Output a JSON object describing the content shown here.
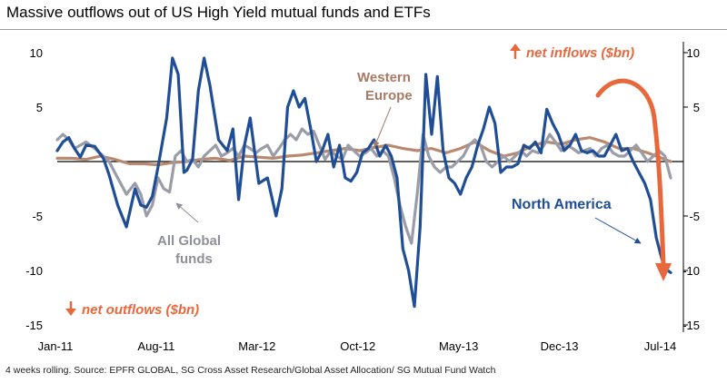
{
  "title": "Massive outflows out of US High Yield mutual funds and ETFs",
  "source": "4 weeks rolling. Source: EPFR GLOBAL, SG Cross Asset Research/Global Asset Allocation/ SG Mutual Fund Watch",
  "colors": {
    "north_america": "#1f4e96",
    "all_global": "#9a9ca8",
    "western_europe": "#b8896e",
    "annotation": "#e8683c",
    "label_gray": "#8e8f99",
    "label_brown": "#a67a66"
  },
  "annotations": {
    "net_inflows": "net inflows ($bn)",
    "net_outflows": "net outflows ($bn)"
  },
  "chart_data": {
    "type": "line",
    "ylim": [
      -15,
      10
    ],
    "y_ticks": [
      10,
      5,
      -5,
      -10,
      -15
    ],
    "x_tick_labels": [
      "Jan-11",
      "Aug-11",
      "Mar-12",
      "Oct-12",
      "May-13",
      "Dec-13",
      "Jul-14"
    ],
    "x_range_months": [
      "2011-01",
      "2014-07"
    ],
    "series": [
      {
        "name": "North America",
        "label_lines": [
          "North America"
        ],
        "x_month": [
          0,
          0.4,
          0.8,
          1.2,
          1.6,
          2.0,
          2.6,
          3.2,
          3.6,
          4.2,
          4.8,
          5.4,
          5.8,
          6.2,
          6.6,
          7.0,
          7.2,
          7.6,
          8.0,
          8.4,
          8.8,
          9.0,
          9.4,
          9.8,
          10.2,
          10.6,
          11.2,
          11.8,
          12.2,
          12.6,
          13.0,
          13.4,
          14.0,
          14.6,
          15.2,
          15.6,
          16.0,
          16.4,
          16.8,
          17.2,
          17.6,
          18.0,
          18.4,
          18.8,
          19.2,
          19.6,
          20.0,
          20.4,
          20.8,
          21.2,
          21.6,
          22.0,
          22.4,
          22.8,
          23.2,
          23.6,
          24.0,
          24.4,
          24.8,
          25.2,
          25.6,
          26.0,
          26.4,
          26.8,
          27.2,
          27.6,
          28.0,
          28.4,
          28.8,
          29.2,
          29.6,
          30.0,
          30.4,
          30.8,
          31.2,
          31.6,
          32.0,
          32.4,
          32.8,
          33.2,
          33.6,
          34.0,
          34.4,
          34.8,
          35.2,
          35.6,
          36.0,
          36.4,
          36.8,
          37.2,
          37.6,
          38.0,
          38.4,
          38.8,
          39.2,
          39.6,
          40.0,
          40.4,
          40.8,
          41.2,
          41.6,
          42.0,
          42.4,
          42.6
        ],
        "values": [
          1.0,
          1.8,
          2.2,
          1.2,
          0.4,
          1.5,
          1.4,
          0.3,
          -1.2,
          -4.0,
          -6.0,
          -2.5,
          -4.0,
          -4.2,
          -3.2,
          -0.5,
          1.0,
          4.0,
          9.5,
          8.0,
          -1.0,
          -0.8,
          0.2,
          6.5,
          9.5,
          7.0,
          2.0,
          1.0,
          3.0,
          -3.5,
          1.5,
          4.0,
          -2.0,
          -1.5,
          -5.0,
          -2.5,
          5.0,
          6.5,
          5.0,
          5.8,
          3.0,
          0.0,
          1.0,
          2.5,
          -0.5,
          1.5,
          -1.5,
          -1.8,
          -1.0,
          0.8,
          1.2,
          2.0,
          0.5,
          1.5,
          0.5,
          -1.5,
          -8.0,
          -10.0,
          -13.3,
          -6.0,
          8.0,
          2.5,
          7.8,
          1.0,
          -1.5,
          -2.0,
          -3.0,
          -1.5,
          -0.5,
          1.5,
          3.0,
          5.0,
          3.5,
          -1.0,
          -0.5,
          -0.5,
          -0.2,
          1.5,
          1.2,
          1.8,
          0.8,
          4.8,
          3.5,
          2.5,
          1.0,
          1.5,
          2.5,
          1.0,
          0.8,
          1.0,
          0.5,
          0.5,
          1.5,
          2.5,
          1.0,
          1.2,
          0.0,
          -1.0,
          -2.0,
          -3.5,
          -7.0,
          -9.0,
          -10.0,
          -10.2
        ]
      },
      {
        "name": "All Global funds",
        "label_lines": [
          "All Global",
          "funds"
        ],
        "x_month": [
          0,
          0.4,
          0.8,
          1.2,
          1.6,
          2.0,
          2.6,
          3.2,
          3.6,
          4.2,
          4.8,
          5.4,
          5.8,
          6.2,
          6.6,
          7.0,
          7.4,
          7.8,
          8.2,
          8.6,
          9.0,
          9.4,
          9.8,
          10.2,
          10.6,
          11.0,
          11.4,
          11.8,
          12.2,
          12.6,
          13.0,
          13.4,
          13.8,
          14.2,
          14.6,
          15.0,
          15.4,
          15.8,
          16.2,
          16.6,
          17.0,
          17.4,
          17.8,
          18.2,
          18.6,
          19.0,
          19.4,
          19.8,
          20.2,
          20.6,
          21.0,
          21.4,
          21.8,
          22.2,
          22.6,
          23.0,
          23.4,
          23.8,
          24.2,
          24.6,
          25.0,
          25.4,
          25.8,
          26.2,
          26.6,
          27.0,
          27.4,
          27.8,
          28.2,
          28.6,
          29.0,
          29.4,
          29.8,
          30.2,
          30.6,
          31.0,
          31.4,
          31.8,
          32.2,
          32.6,
          33.0,
          33.4,
          33.8,
          34.2,
          34.6,
          35.0,
          35.4,
          35.8,
          36.2,
          36.6,
          37.0,
          37.4,
          37.8,
          38.2,
          38.6,
          39.0,
          39.4,
          39.8,
          40.2,
          40.6,
          41.0,
          41.4,
          41.8,
          42.2,
          42.6
        ],
        "values": [
          2.0,
          2.5,
          2.0,
          1.2,
          1.5,
          1.8,
          1.2,
          0.5,
          0.0,
          -1.5,
          -3.0,
          -2.0,
          -3.0,
          -5.0,
          -4.0,
          -1.5,
          -2.5,
          -2.8,
          0.5,
          1.0,
          0.0,
          0.2,
          -0.5,
          0.5,
          1.0,
          1.5,
          0.5,
          0.8,
          1.2,
          0.5,
          1.5,
          1.2,
          0.8,
          1.2,
          1.5,
          0.5,
          1.2,
          2.0,
          2.5,
          2.0,
          3.0,
          2.5,
          2.8,
          1.5,
          0.2,
          1.0,
          0.5,
          0.2,
          1.5,
          1.0,
          0.5,
          0.8,
          1.2,
          0.5,
          1.0,
          0.5,
          -1.5,
          -4.0,
          -6.0,
          -7.5,
          -3.0,
          2.5,
          0.5,
          -0.5,
          -1.0,
          -0.5,
          -0.5,
          0.0,
          0.5,
          1.5,
          2.0,
          1.5,
          0.0,
          -0.5,
          0.0,
          0.5,
          0.0,
          0.5,
          1.0,
          0.5,
          1.0,
          0.8,
          1.5,
          2.5,
          1.8,
          1.0,
          1.5,
          1.2,
          0.8,
          1.0,
          1.2,
          0.5,
          1.2,
          1.5,
          0.8,
          0.5,
          0.5,
          1.0,
          1.5,
          0.8,
          0.0,
          0.5,
          1.0,
          0.5,
          -1.5
        ]
      },
      {
        "name": "Western Europe",
        "label_lines": [
          "Western",
          "Europe"
        ],
        "x_month": [
          0,
          1,
          2,
          3,
          4,
          5,
          6,
          7,
          8,
          9,
          10,
          11,
          12,
          13,
          14,
          15,
          16,
          17,
          18,
          19,
          20,
          21,
          22,
          23,
          24,
          25,
          26,
          27,
          28,
          29,
          30,
          31,
          32,
          33,
          34,
          35,
          36,
          37,
          38,
          39,
          40,
          41,
          42,
          42.6
        ],
        "values": [
          0.3,
          0.3,
          0.2,
          0.5,
          0.2,
          -0.2,
          -0.2,
          -0.3,
          -0.1,
          0.0,
          0.2,
          0.3,
          0.1,
          0.5,
          0.4,
          0.3,
          0.5,
          0.6,
          0.8,
          1.0,
          1.2,
          1.0,
          1.3,
          1.5,
          1.2,
          1.0,
          1.2,
          0.8,
          1.2,
          1.8,
          1.0,
          0.5,
          0.8,
          1.5,
          1.8,
          1.6,
          2.0,
          2.2,
          1.8,
          1.2,
          1.2,
          0.8,
          0.3,
          0.0
        ]
      }
    ]
  }
}
